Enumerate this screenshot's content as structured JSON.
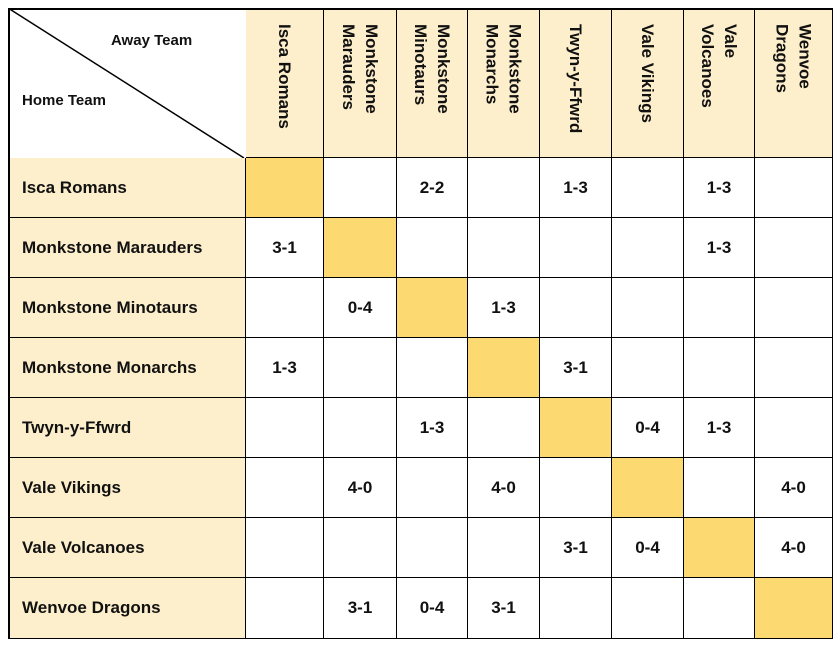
{
  "table": {
    "corner": {
      "away": "Away Team",
      "home": "Home Team"
    },
    "columns": [
      "Isca Romans",
      "Monkstone Marauders",
      "Monkstone Minotaurs",
      "Monkstone Monarchs",
      "Twyn-y-Ffwrd",
      "Vale Vikings",
      "Vale Volcanoes",
      "Wenvoe Dragons"
    ],
    "rows": [
      {
        "team": "Isca Romans",
        "results": [
          null,
          null,
          "2-2",
          null,
          "1-3",
          null,
          "1-3",
          null
        ]
      },
      {
        "team": "Monkstone Marauders",
        "results": [
          "3-1",
          null,
          null,
          null,
          null,
          null,
          "1-3",
          null
        ]
      },
      {
        "team": "Monkstone Minotaurs",
        "results": [
          null,
          "0-4",
          null,
          "1-3",
          null,
          null,
          null,
          null
        ]
      },
      {
        "team": "Monkstone Monarchs",
        "results": [
          "1-3",
          null,
          null,
          null,
          "3-1",
          null,
          null,
          null
        ]
      },
      {
        "team": "Twyn-y-Ffwrd",
        "results": [
          null,
          null,
          "1-3",
          null,
          null,
          "0-4",
          "1-3",
          null
        ]
      },
      {
        "team": "Vale Vikings",
        "results": [
          null,
          "4-0",
          null,
          "4-0",
          null,
          null,
          null,
          "4-0"
        ]
      },
      {
        "team": "Vale Volcanoes",
        "results": [
          null,
          null,
          null,
          null,
          "3-1",
          "0-4",
          null,
          "4-0"
        ]
      },
      {
        "team": "Wenvoe Dragons",
        "results": [
          null,
          "3-1",
          "0-4",
          "3-1",
          null,
          null,
          null,
          null
        ]
      }
    ]
  }
}
